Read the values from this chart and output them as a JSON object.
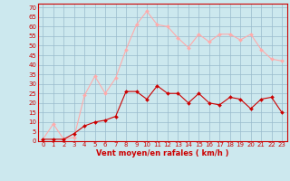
{
  "x": [
    0,
    1,
    2,
    3,
    4,
    5,
    6,
    7,
    8,
    9,
    10,
    11,
    12,
    13,
    14,
    15,
    16,
    17,
    18,
    19,
    20,
    21,
    22,
    23
  ],
  "rafales": [
    1,
    9,
    1,
    2,
    24,
    34,
    25,
    33,
    48,
    61,
    68,
    61,
    60,
    54,
    49,
    56,
    52,
    56,
    56,
    53,
    56,
    48,
    43,
    42
  ],
  "moyen": [
    1,
    1,
    1,
    4,
    8,
    10,
    11,
    13,
    26,
    26,
    22,
    29,
    25,
    25,
    20,
    25,
    20,
    19,
    23,
    22,
    17,
    22,
    23,
    15
  ],
  "color_rafales": "#ffaaaa",
  "color_moyen": "#cc0000",
  "bg_color": "#cce8ee",
  "grid_color": "#99bbcc",
  "xlabel": "Vent moyen/en rafales ( km/h )",
  "ylabel_ticks": [
    0,
    5,
    10,
    15,
    20,
    25,
    30,
    35,
    40,
    45,
    50,
    55,
    60,
    65,
    70
  ],
  "ylim": [
    0,
    72
  ],
  "xlim": [
    -0.5,
    23.5
  ],
  "tick_color": "#cc0000",
  "tick_fontsize": 5.0,
  "xlabel_fontsize": 6.0,
  "marker_size": 2.0,
  "linewidth": 0.8
}
